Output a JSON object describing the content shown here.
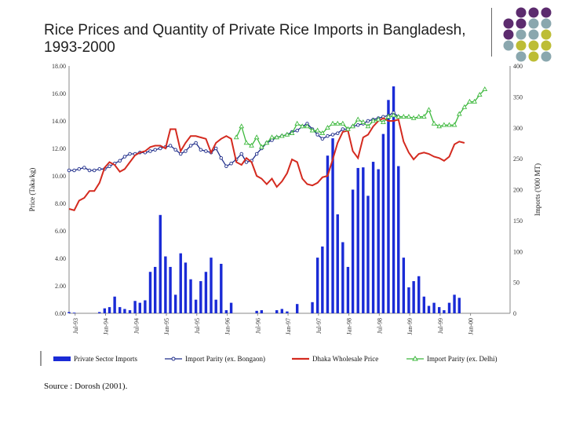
{
  "slide": {
    "title": "Rice Prices and Quantity of Private Rice Imports in Bangladesh, 1993-2000",
    "source": "Source : Dorosh (2001).",
    "decor_colors": [
      "#5c2b6e",
      "#8aa7ae",
      "#bdbd35"
    ]
  },
  "chart_data": {
    "type": "bar+line",
    "title": "",
    "ylabel_left": "Price (Taka/kg)",
    "ylabel_right": "Imports ('000 MT)",
    "ylim_left": [
      0,
      18
    ],
    "ylim_right": [
      0,
      400
    ],
    "yticks_left": [
      "0.00",
      "2.00",
      "4.00",
      "6.00",
      "8.00",
      "10.00",
      "12.00",
      "14.00",
      "16.00",
      "18.00"
    ],
    "yticks_right": [
      "0",
      "50",
      "100",
      "150",
      "200",
      "250",
      "300",
      "350",
      "400"
    ],
    "xticks": [
      "Jul-93",
      "Jan-94",
      "Jul-94",
      "Jan-95",
      "Jul-95",
      "Jan-96",
      "Jul-96",
      "Jan-97",
      "Jul-97",
      "Jan-98",
      "Jul-98",
      "Jan-99",
      "Jul-99",
      "Jan-00"
    ],
    "legend_position": "bottom",
    "grid": false,
    "series": [
      {
        "name": "Private Sector Imports",
        "kind": "bar",
        "axis": "right",
        "color": "#1a2bd6",
        "x": [
          6.5,
          6.67,
          6.83,
          7.0,
          7.17,
          7.33,
          7.5,
          7.67,
          7.83,
          8.0,
          8.17,
          8.33,
          8.5,
          8.67,
          8.83,
          9.0,
          9.17,
          9.33,
          9.5,
          9.67,
          9.83,
          10.0,
          10.17,
          10.33,
          10.5,
          10.67,
          10.83,
          11.0,
          11.17,
          11.33,
          11.5,
          11.67,
          11.83,
          12.0,
          12.17,
          12.33,
          12.5,
          12.67,
          12.83,
          13.0,
          13.17,
          13.33,
          13.5,
          13.67,
          13.83,
          14.0,
          14.17,
          14.33,
          14.5,
          14.67,
          14.83,
          15.0,
          15.17,
          15.33,
          15.5,
          15.67,
          15.83,
          16.0,
          16.17,
          16.33,
          16.5,
          16.67,
          16.83,
          17.0,
          17.17,
          17.33,
          17.5,
          17.67,
          17.83,
          18.0,
          18.17,
          18.33,
          18.5,
          18.67,
          18.83,
          19.0,
          19.17,
          19.33,
          19.5,
          19.67,
          19.83,
          20.0,
          20.17,
          20.33,
          20.5,
          20.67,
          20.83
        ],
        "values": [
          2,
          1,
          0,
          0,
          0,
          0,
          2,
          8,
          10,
          27,
          10,
          7,
          5,
          20,
          17,
          21,
          67,
          75,
          159,
          92,
          75,
          30,
          97,
          82,
          55,
          22,
          52,
          67,
          90,
          22,
          80,
          5,
          17,
          0,
          0,
          0,
          0,
          4,
          5,
          0,
          0,
          5,
          7,
          3,
          0,
          15,
          0,
          0,
          18,
          90,
          108,
          255,
          283,
          160,
          115,
          75,
          200,
          235,
          236,
          190,
          245,
          233,
          290,
          345,
          367,
          238,
          90,
          42,
          52,
          60,
          27,
          12,
          17,
          10,
          5,
          17,
          30,
          25,
          0,
          0,
          0,
          0,
          0,
          0,
          0,
          0,
          0
        ]
      },
      {
        "name": "Import Parity (ex. Bongaon)",
        "kind": "line",
        "axis": "left",
        "color": "#1f2d8a",
        "marker": "circle",
        "x": [
          6.5,
          6.67,
          6.83,
          7.0,
          7.17,
          7.33,
          7.5,
          7.67,
          7.83,
          8.0,
          8.17,
          8.33,
          8.5,
          8.67,
          8.83,
          9.0,
          9.17,
          9.33,
          9.5,
          9.67,
          9.83,
          10.0,
          10.17,
          10.33,
          10.5,
          10.67,
          10.83,
          11.0,
          11.17,
          11.33,
          11.5,
          11.67,
          11.83,
          12.0,
          12.17,
          12.33,
          12.5,
          12.67,
          12.83,
          13.0,
          13.17,
          13.33,
          13.5,
          13.67,
          13.83,
          14.0,
          14.17,
          14.33,
          14.5,
          14.67,
          14.83,
          15.0,
          15.17,
          15.33,
          15.5,
          15.67,
          15.83,
          16.0,
          16.17,
          16.33,
          16.5,
          16.67,
          16.83,
          17.0,
          17.17,
          17.33,
          17.5,
          17.67,
          17.83,
          18.0,
          18.17,
          18.33,
          18.5,
          18.67,
          18.83,
          19.0,
          19.17,
          19.33,
          19.5,
          19.67,
          19.83,
          20.0,
          20.17,
          20.33,
          20.5,
          20.67,
          20.83
        ],
        "values": [
          10.4,
          10.4,
          10.5,
          10.6,
          10.4,
          10.4,
          10.5,
          10.5,
          10.7,
          10.9,
          11.1,
          11.4,
          11.6,
          11.6,
          11.7,
          11.7,
          11.8,
          11.9,
          12.0,
          12.1,
          12.2,
          11.9,
          11.6,
          11.8,
          12.2,
          12.4,
          11.9,
          11.8,
          11.7,
          12.0,
          11.3,
          10.7,
          10.9,
          11.2,
          11.6,
          11.0,
          11.1,
          11.6,
          12.0,
          12.4,
          12.6,
          12.8,
          12.9,
          13.0,
          13.2,
          13.3,
          13.6,
          13.8,
          13.4,
          13.0,
          12.7,
          12.9,
          13.0,
          13.1,
          13.4,
          13.4,
          13.6,
          13.7,
          13.8,
          14.0,
          14.1,
          14.2,
          14.3,
          14.4,
          14.6,
          14.3,
          null,
          null,
          null,
          null,
          null,
          null,
          null,
          null,
          null,
          null,
          null,
          null,
          null,
          null,
          null,
          null,
          null,
          null,
          null,
          null,
          null
        ]
      },
      {
        "name": "Dhaka Wholesale Price",
        "kind": "line",
        "axis": "left",
        "color": "#d42a1f",
        "x": [
          6.5,
          6.67,
          6.83,
          7.0,
          7.17,
          7.33,
          7.5,
          7.67,
          7.83,
          8.0,
          8.17,
          8.33,
          8.5,
          8.67,
          8.83,
          9.0,
          9.17,
          9.33,
          9.5,
          9.67,
          9.83,
          10.0,
          10.17,
          10.33,
          10.5,
          10.67,
          10.83,
          11.0,
          11.17,
          11.33,
          11.5,
          11.67,
          11.83,
          12.0,
          12.17,
          12.33,
          12.5,
          12.67,
          12.83,
          13.0,
          13.17,
          13.33,
          13.5,
          13.67,
          13.83,
          14.0,
          14.17,
          14.33,
          14.5,
          14.67,
          14.83,
          15.0,
          15.17,
          15.33,
          15.5,
          15.67,
          15.83,
          16.0,
          16.17,
          16.33,
          16.5,
          16.67,
          16.83,
          17.0,
          17.17,
          17.33,
          17.5,
          17.67,
          17.83,
          18.0,
          18.17,
          18.33,
          18.5,
          18.67,
          18.83,
          19.0,
          19.17,
          19.33,
          19.5,
          19.67,
          19.83,
          20.0,
          20.17,
          20.33,
          20.5,
          20.67,
          20.83
        ],
        "values": [
          7.6,
          7.5,
          8.2,
          8.4,
          8.9,
          8.9,
          9.5,
          10.6,
          11.0,
          10.8,
          10.3,
          10.5,
          11.0,
          11.5,
          11.7,
          11.8,
          12.1,
          12.2,
          12.2,
          12.0,
          13.4,
          13.4,
          11.8,
          12.4,
          12.9,
          12.9,
          12.8,
          12.7,
          11.7,
          12.4,
          12.7,
          12.9,
          12.7,
          11.0,
          10.8,
          11.3,
          11.0,
          10.0,
          9.8,
          9.4,
          9.8,
          9.2,
          9.6,
          10.2,
          11.2,
          11.0,
          9.8,
          9.4,
          9.3,
          9.5,
          9.9,
          10.0,
          11.2,
          12.4,
          13.2,
          13.3,
          11.8,
          11.3,
          12.8,
          13.0,
          13.6,
          14.0,
          14.2,
          14.0,
          14.0,
          14.1,
          12.5,
          11.7,
          11.2,
          11.6,
          11.7,
          11.6,
          11.4,
          11.3,
          11.1,
          11.4,
          12.3,
          12.5,
          12.4,
          null,
          null,
          null,
          null,
          null,
          null,
          null,
          null
        ]
      },
      {
        "name": "Import Parity (ex. Delhi)",
        "kind": "line",
        "axis": "left",
        "color": "#3cb83c",
        "marker": "triangle",
        "x": [
          6.5,
          6.67,
          6.83,
          7.0,
          7.17,
          7.33,
          7.5,
          7.67,
          7.83,
          8.0,
          8.17,
          8.33,
          8.5,
          8.67,
          8.83,
          9.0,
          9.17,
          9.33,
          9.5,
          9.67,
          9.83,
          10.0,
          10.17,
          10.33,
          10.5,
          10.67,
          10.83,
          11.0,
          11.17,
          11.33,
          11.5,
          11.67,
          11.83,
          12.0,
          12.17,
          12.33,
          12.5,
          12.67,
          12.83,
          13.0,
          13.17,
          13.33,
          13.5,
          13.67,
          13.83,
          14.0,
          14.17,
          14.33,
          14.5,
          14.67,
          14.83,
          15.0,
          15.17,
          15.33,
          15.5,
          15.67,
          15.83,
          16.0,
          16.17,
          16.33,
          16.5,
          16.67,
          16.83,
          17.0,
          17.17,
          17.33,
          17.5,
          17.67,
          17.83,
          18.0,
          18.17,
          18.33,
          18.5,
          18.67,
          18.83,
          19.0,
          19.17,
          19.33,
          19.5,
          19.67,
          19.83,
          20.0,
          20.17,
          20.33,
          20.5,
          20.67,
          20.83
        ],
        "values": [
          null,
          null,
          null,
          null,
          null,
          null,
          null,
          null,
          null,
          null,
          null,
          null,
          null,
          null,
          null,
          null,
          null,
          null,
          null,
          null,
          null,
          null,
          null,
          null,
          null,
          null,
          null,
          null,
          null,
          null,
          null,
          null,
          null,
          12.8,
          13.6,
          12.4,
          12.2,
          12.8,
          12.1,
          12.4,
          12.8,
          12.8,
          12.9,
          13.0,
          13.1,
          13.8,
          13.6,
          13.6,
          13.3,
          13.3,
          13.1,
          13.5,
          13.8,
          13.8,
          13.8,
          13.4,
          13.6,
          14.1,
          13.9,
          13.6,
          14.0,
          14.1,
          13.9,
          14.3,
          14.4,
          14.3,
          14.3,
          14.3,
          14.2,
          14.3,
          14.3,
          14.8,
          13.8,
          13.6,
          13.7,
          13.7,
          13.7,
          14.5,
          15.0,
          15.4,
          15.4,
          15.9,
          16.3,
          null,
          null,
          null,
          null
        ]
      }
    ]
  }
}
